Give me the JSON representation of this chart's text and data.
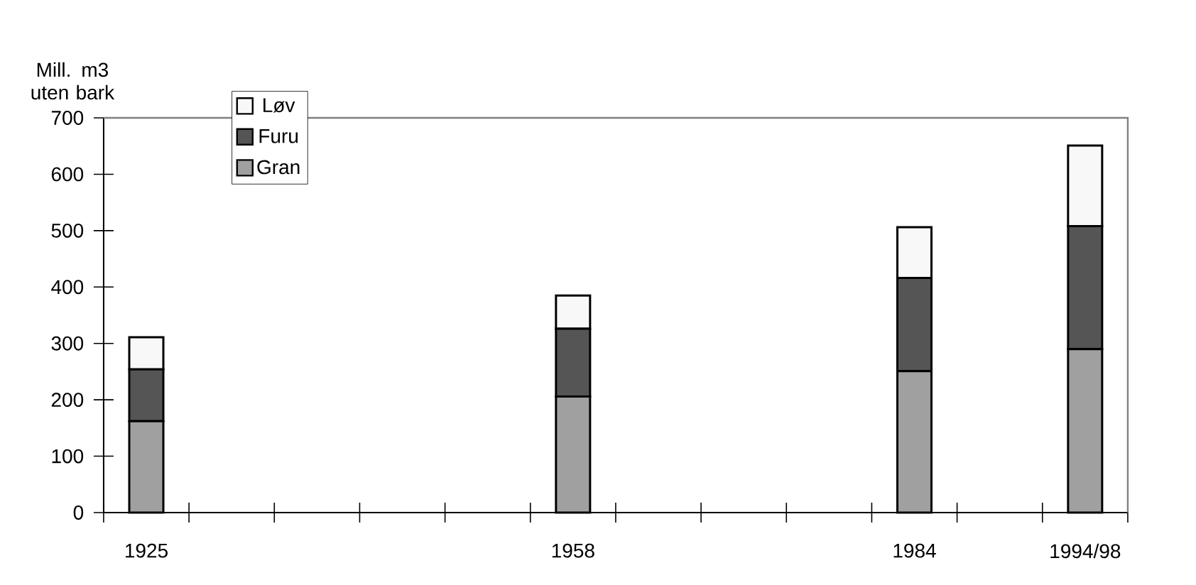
{
  "chart_data": {
    "type": "bar",
    "stacked": true,
    "ylabel": "Mill. m3 uten bark",
    "categories": [
      "1925",
      null,
      null,
      null,
      null,
      "1958",
      null,
      null,
      null,
      "1984",
      null,
      "1994/98"
    ],
    "series": [
      {
        "name": "Gran",
        "color": "#a0a0a0",
        "values": [
          162,
          null,
          null,
          null,
          null,
          206,
          null,
          null,
          null,
          251,
          null,
          290
        ]
      },
      {
        "name": "Furu",
        "color": "#555555",
        "values": [
          92,
          null,
          null,
          null,
          null,
          120,
          null,
          null,
          null,
          165,
          null,
          218
        ]
      },
      {
        "name": "Løv",
        "color": "#f8f8f8",
        "values": [
          57,
          null,
          null,
          null,
          null,
          59,
          null,
          null,
          null,
          90,
          null,
          143
        ]
      }
    ],
    "ylim": [
      0,
      700
    ],
    "yticks": [
      0,
      100,
      200,
      300,
      400,
      500,
      600,
      700
    ],
    "legend": "top left",
    "grid": false
  }
}
